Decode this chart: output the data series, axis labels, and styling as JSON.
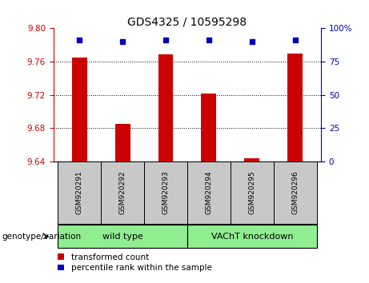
{
  "title": "GDS4325 / 10595298",
  "samples": [
    "GSM920291",
    "GSM920292",
    "GSM920293",
    "GSM920294",
    "GSM920295",
    "GSM920296"
  ],
  "red_values": [
    9.765,
    9.685,
    9.769,
    9.722,
    9.644,
    9.77
  ],
  "blue_values": [
    91,
    90,
    91,
    91,
    90,
    91
  ],
  "ylim_left": [
    9.64,
    9.8
  ],
  "ylim_right": [
    0,
    100
  ],
  "yticks_left": [
    9.64,
    9.68,
    9.72,
    9.76,
    9.8
  ],
  "yticks_right": [
    0,
    25,
    50,
    75,
    100
  ],
  "baseline": 9.64,
  "groups": [
    {
      "label": "wild type",
      "indices": [
        0,
        1,
        2
      ],
      "color": "#90EE90"
    },
    {
      "label": "VAChT knockdown",
      "indices": [
        3,
        4,
        5
      ],
      "color": "#90EE90"
    }
  ],
  "red_color": "#CC0000",
  "blue_color": "#0000BB",
  "left_axis_color": "#CC0000",
  "right_axis_color": "#0000BB",
  "grid_color": "#000000",
  "bg_label": "#C8C8C8",
  "legend_red_label": "transformed count",
  "legend_blue_label": "percentile rank within the sample",
  "genotype_label": "genotype/variation",
  "title_fontsize": 10,
  "tick_fontsize": 7.5,
  "label_fontsize": 8
}
